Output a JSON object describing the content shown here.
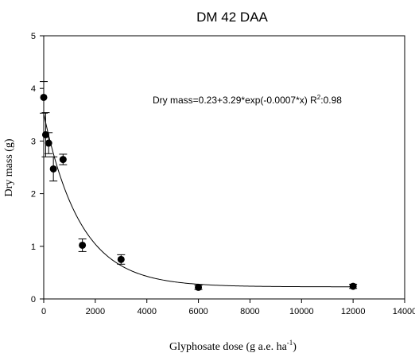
{
  "chart_data": {
    "type": "scatter",
    "title": "DM 42 DAA",
    "xlabel": "Glyphosate dose (g a.e. ha",
    "xlabel_superscript": "-1",
    "xlabel_suffix": ")",
    "ylabel": "Dry mass (g)",
    "xlim": [
      0,
      14000
    ],
    "ylim": [
      0,
      5
    ],
    "xticks": [
      0,
      2000,
      4000,
      6000,
      8000,
      10000,
      12000,
      14000
    ],
    "yticks": [
      0,
      1,
      2,
      3,
      4,
      5
    ],
    "grid": false,
    "points": [
      {
        "x": 0,
        "y": 3.83,
        "err": 0.3
      },
      {
        "x": 75,
        "y": 3.12,
        "err": 0.42
      },
      {
        "x": 190,
        "y": 2.96,
        "err": 0.2
      },
      {
        "x": 375,
        "y": 2.47,
        "err": 0.23
      },
      {
        "x": 750,
        "y": 2.65,
        "err": 0.1
      },
      {
        "x": 1500,
        "y": 1.02,
        "err": 0.12
      },
      {
        "x": 3000,
        "y": 0.75,
        "err": 0.09
      },
      {
        "x": 6000,
        "y": 0.22,
        "err": 0.04
      },
      {
        "x": 12000,
        "y": 0.24,
        "err": 0.04
      }
    ],
    "fit": {
      "a": 0.23,
      "b": 3.29,
      "k": -0.0007
    },
    "annotation_text": "Dry mass=0.23+3.29*exp(-0.0007*x) R",
    "annotation_superscript": "2",
    "annotation_suffix": ":0.98",
    "marker_color": "#000000"
  }
}
